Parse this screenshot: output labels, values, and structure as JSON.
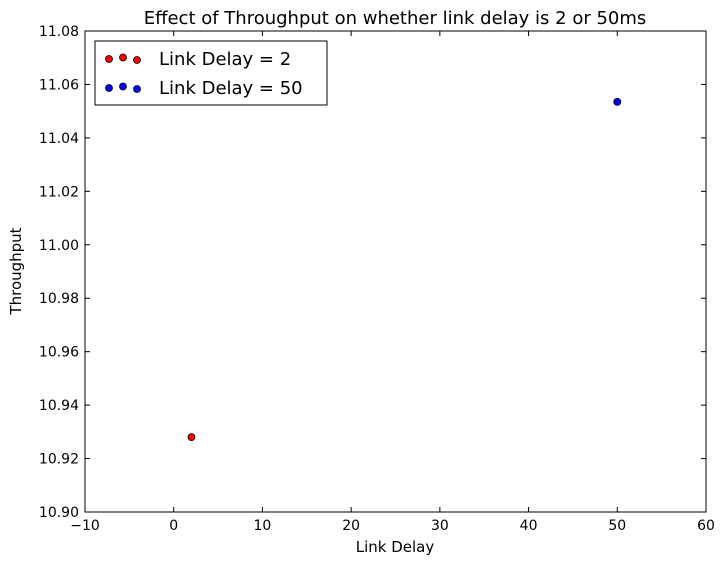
{
  "chart_data": {
    "type": "scatter",
    "title": "Effect of Throughput on whether link delay is 2 or 50ms",
    "xlabel": "Link Delay",
    "ylabel": "Throughput",
    "xlim": [
      -10,
      60
    ],
    "ylim": [
      10.9,
      11.08
    ],
    "xticks": [
      -10,
      0,
      10,
      20,
      30,
      40,
      50,
      60
    ],
    "xtick_labels": [
      "−10",
      "0",
      "10",
      "20",
      "30",
      "40",
      "50",
      "60"
    ],
    "yticks": [
      10.9,
      10.92,
      10.94,
      10.96,
      10.98,
      11.0,
      11.02,
      11.04,
      11.06,
      11.08
    ],
    "ytick_labels": [
      "10.90",
      "10.92",
      "10.94",
      "10.96",
      "10.98",
      "11.00",
      "11.02",
      "11.04",
      "11.06",
      "11.08"
    ],
    "grid": false,
    "legend_position": "top-left",
    "series": [
      {
        "name": "Link Delay = 2",
        "color": "#ff0000",
        "points": [
          {
            "x": 2,
            "y": 10.928
          }
        ]
      },
      {
        "name": "Link Delay = 50",
        "color": "#0000ff",
        "points": [
          {
            "x": 50,
            "y": 11.0535
          }
        ]
      }
    ]
  }
}
